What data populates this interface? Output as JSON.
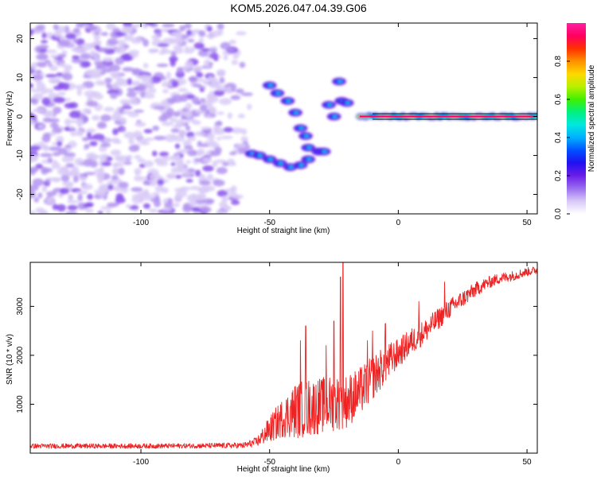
{
  "title": "KOM5.2026.047.04.39.G06",
  "chart_data": [
    {
      "type": "heatmap",
      "xlabel": "Height of straight line (km)",
      "ylabel": "Frequency (Hz)",
      "xlim": [
        -143,
        54
      ],
      "ylim": [
        -25,
        24
      ],
      "xticks": [
        -100,
        -50,
        0,
        50
      ],
      "yticks": [
        -20,
        -10,
        0,
        10,
        20
      ],
      "colorbar": {
        "label": "Normalized spectral amplitude",
        "range": [
          0,
          1
        ],
        "ticks": [
          "0.0",
          "0.2",
          "0.4",
          "0.6",
          "0.8"
        ],
        "colormap": [
          "#ffffff",
          "#d8c8f8",
          "#9a6ef0",
          "#6a1ee8",
          "#2010f0",
          "#0050ff",
          "#00b0ff",
          "#00e8e0",
          "#00f080",
          "#40f000",
          "#b8f000",
          "#ffd800",
          "#ff9000",
          "#ff3000",
          "#ff0060",
          "#ff20a0"
        ]
      },
      "features": {
        "noise_region_x": [
          -143,
          -55
        ],
        "carrier_line": {
          "frequency": 0,
          "x_range": [
            -15,
            54
          ],
          "peak_amplitude": 0.95
        },
        "arc_upper": [
          [
            -50,
            8
          ],
          [
            -47,
            6
          ],
          [
            -43,
            4
          ],
          [
            -40,
            1
          ],
          [
            -38,
            -3
          ],
          [
            -36,
            -5
          ]
        ],
        "arc_lower": [
          [
            -57,
            -9.5
          ],
          [
            -54,
            -10
          ],
          [
            -50,
            -11
          ],
          [
            -46,
            -12
          ],
          [
            -42,
            -13
          ],
          [
            -38,
            -12.5
          ],
          [
            -35,
            -11
          ]
        ],
        "mid_blobs": [
          [
            -35,
            -8
          ],
          [
            -31,
            -9
          ],
          [
            -29,
            -9
          ],
          [
            -25,
            0
          ],
          [
            -27,
            3
          ],
          [
            -22,
            4
          ],
          [
            -20,
            3.5
          ],
          [
            -23,
            9
          ]
        ]
      }
    },
    {
      "type": "line",
      "xlabel": "Height of straight line (km)",
      "ylabel": "SNR (10 * v/v)",
      "xlim": [
        -143,
        54
      ],
      "ylim": [
        0,
        3900
      ],
      "xticks": [
        -100,
        -50,
        0,
        50
      ],
      "yticks": [
        1000,
        2000,
        3000
      ],
      "series": [
        {
          "color": "#ee2222",
          "envelope": {
            "x": [
              -143,
              -120,
              -100,
              -80,
              -60,
              -55,
              -50,
              -45,
              -40,
              -35,
              -30,
              -25,
              -20,
              -15,
              -10,
              -5,
              0,
              5,
              10,
              15,
              20,
              25,
              30,
              35,
              40,
              45,
              50,
              54
            ],
            "base": [
              130,
              130,
              130,
              135,
              140,
              200,
              400,
              600,
              700,
              750,
              800,
              850,
              900,
              1100,
              1400,
              1700,
              1950,
              2200,
              2400,
              2650,
              2900,
              3100,
              3300,
              3450,
              3550,
              3600,
              3680,
              3720
            ],
            "spread": [
              100,
              100,
              100,
              100,
              120,
              200,
              550,
              800,
              1150,
              1200,
              1150,
              1150,
              1100,
              1000,
              900,
              800,
              600,
              550,
              500,
              450,
              400,
              350,
              300,
              250,
              220,
              200,
              180,
              160
            ]
          },
          "spikes": [
            [
              -21.5,
              3900
            ],
            [
              -22.5,
              3600
            ],
            [
              -36,
              2600
            ],
            [
              -38,
              2300
            ],
            [
              -25,
              2700
            ],
            [
              -28,
              2200
            ],
            [
              -10,
              2500
            ],
            [
              -5,
              2650
            ],
            [
              8,
              3100
            ],
            [
              18,
              3500
            ],
            [
              -12,
              2300
            ]
          ]
        }
      ]
    }
  ]
}
